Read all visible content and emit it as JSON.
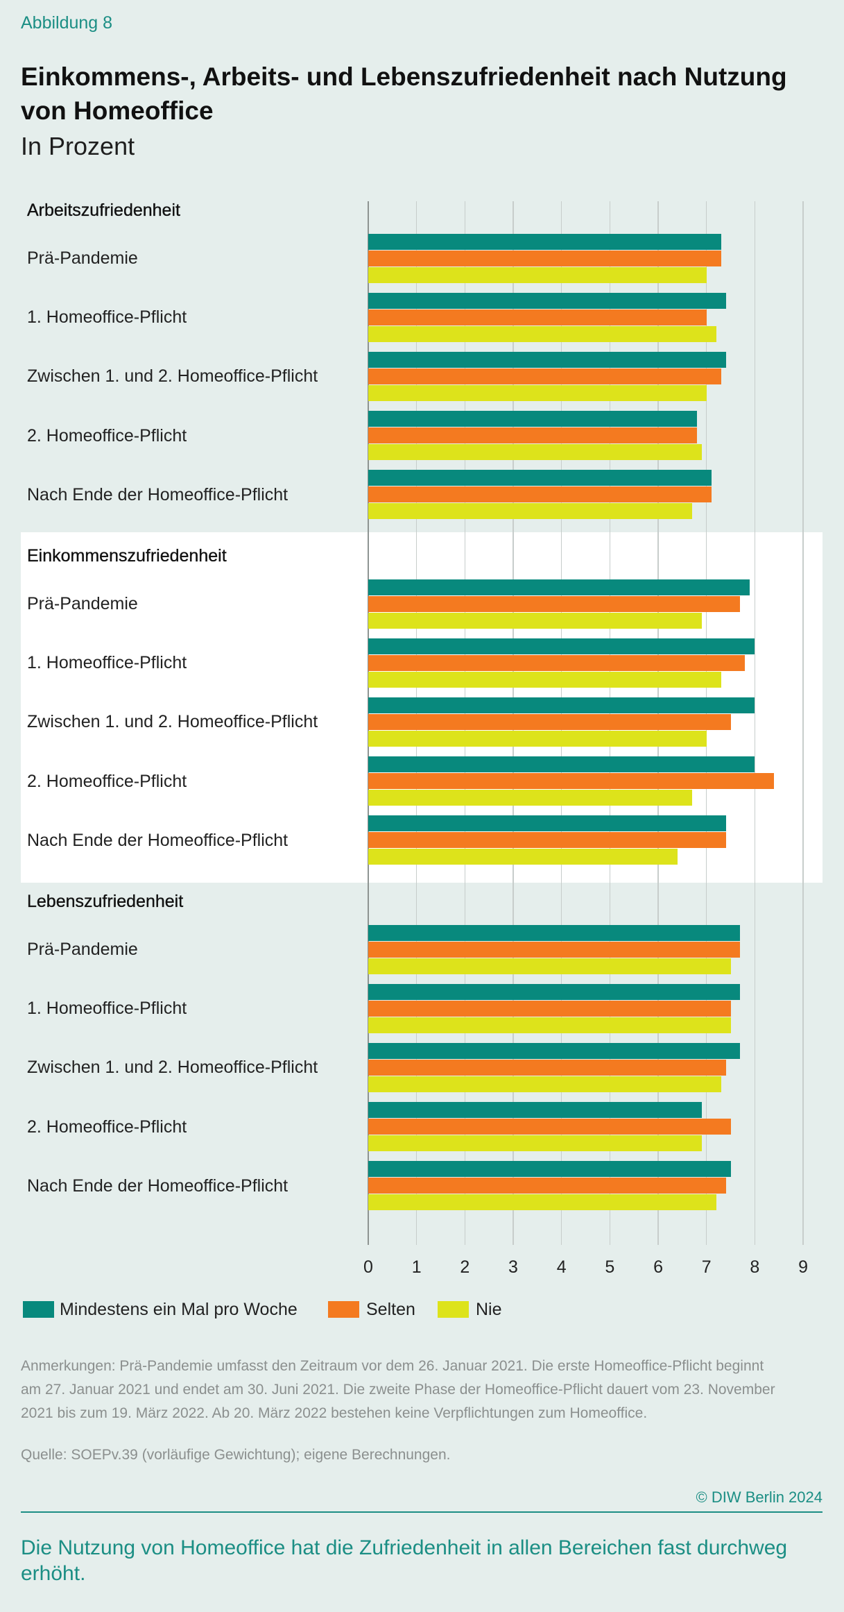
{
  "figure": {
    "label": "Abbildung 8",
    "title": "Einkommens-, Arbeits- und Lebenszufriedenheit nach Nutzung von Homeoffice",
    "subtitle": "In Prozent"
  },
  "colors": {
    "background": "#e5eeec",
    "highlight_panel": "#ffffff",
    "accent": "#1b8e84"
  },
  "chart_data": {
    "type": "bar",
    "orientation": "horizontal",
    "xlim": [
      0,
      9
    ],
    "xticks": [
      0,
      1,
      2,
      3,
      4,
      5,
      6,
      7,
      8,
      9
    ],
    "grid": true,
    "legend": "bottom-left",
    "series": [
      {
        "name": "Mindestens ein Mal pro Woche",
        "color": "#08897d"
      },
      {
        "name": "Selten",
        "color": "#f47a20"
      },
      {
        "name": "Nie",
        "color": "#dde31b"
      }
    ],
    "categories": [
      "Prä-Pandemie",
      "1. Homeoffice-Pflicht",
      "Zwischen 1. und 2. Homeoffice-Pflicht",
      "2. Homeoffice-Pflicht",
      "Nach Ende der Homeoffice-Pflicht"
    ],
    "panels": [
      {
        "title": "Arbeitszufriedenheit",
        "highlight": false,
        "values": [
          [
            7.3,
            7.3,
            7.0
          ],
          [
            7.4,
            7.0,
            7.2
          ],
          [
            7.4,
            7.3,
            7.0
          ],
          [
            6.8,
            6.8,
            6.9
          ],
          [
            7.1,
            7.1,
            6.7
          ]
        ]
      },
      {
        "title": "Einkommenszufriedenheit",
        "highlight": true,
        "values": [
          [
            7.9,
            7.7,
            6.9
          ],
          [
            8.0,
            7.8,
            7.3
          ],
          [
            8.0,
            7.5,
            7.0
          ],
          [
            8.0,
            8.4,
            6.7
          ],
          [
            7.4,
            7.4,
            6.4
          ]
        ]
      },
      {
        "title": "Lebenszufriedenheit",
        "highlight": false,
        "values": [
          [
            7.7,
            7.7,
            7.5
          ],
          [
            7.7,
            7.5,
            7.5
          ],
          [
            7.7,
            7.4,
            7.3
          ],
          [
            6.9,
            7.5,
            6.9
          ],
          [
            7.5,
            7.4,
            7.2
          ]
        ]
      }
    ]
  },
  "notes": {
    "lines": [
      "Anmerkungen: Prä-Pandemie umfasst den Zeitraum vor dem 26. Januar 2021. Die erste Homeoffice-Pflicht beginnt",
      "am 27. Januar 2021 und endet am 30. Juni 2021. Die zweite Phase der Homeoffice-Pflicht dauert vom 23. November",
      "2021 bis zum 19. März 2022. Ab 20. März 2022 bestehen keine Verpflichtungen zum Homeoffice."
    ]
  },
  "source": "Quelle: SOEPv.39 (vorläufige Gewichtung); eigene Berechnungen.",
  "copyright": "© DIW Berlin 2024",
  "takeaway": "Die Nutzung von Homeoffice hat die Zufriedenheit in allen Bereichen fast durchweg erhöht."
}
